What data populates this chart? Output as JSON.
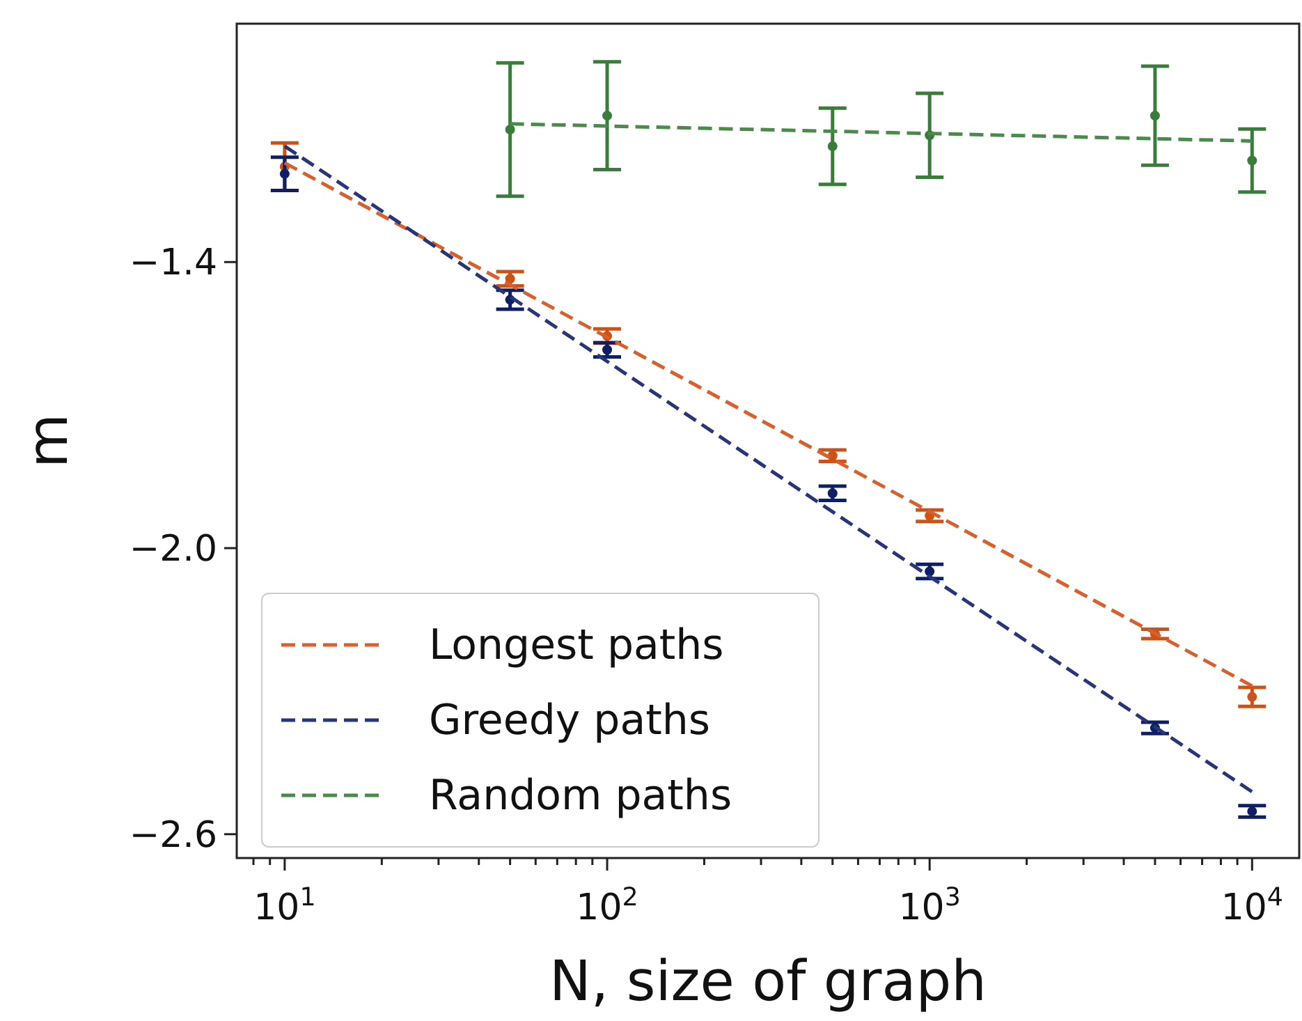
{
  "chart_data": {
    "type": "scatter",
    "xlabel": "N, size of graph",
    "ylabel": "m",
    "log": "x",
    "xlim": [
      7.1,
      14000
    ],
    "ylim": [
      -2.65,
      -0.9
    ],
    "xticks": [
      {
        "value": 10,
        "label": "10$^{1}$"
      },
      {
        "value": 100,
        "label": "10$^{2}$"
      },
      {
        "value": 1000,
        "label": "10$^{3}$"
      },
      {
        "value": 10000,
        "label": "10$^{4}$"
      },
      {
        "value": 8,
        "label": null
      },
      {
        "value": 9,
        "label": null
      },
      {
        "value": 20,
        "label": null
      },
      {
        "value": 30,
        "label": null
      },
      {
        "value": 40,
        "label": null
      },
      {
        "value": 50,
        "label": null
      },
      {
        "value": 60,
        "label": null
      },
      {
        "value": 70,
        "label": null
      },
      {
        "value": 80,
        "label": null
      },
      {
        "value": 90,
        "label": null
      },
      {
        "value": 200,
        "label": null
      },
      {
        "value": 300,
        "label": null
      },
      {
        "value": 400,
        "label": null
      },
      {
        "value": 500,
        "label": null
      },
      {
        "value": 600,
        "label": null
      },
      {
        "value": 700,
        "label": null
      },
      {
        "value": 800,
        "label": null
      },
      {
        "value": 900,
        "label": null
      },
      {
        "value": 2000,
        "label": null
      },
      {
        "value": 3000,
        "label": null
      },
      {
        "value": 4000,
        "label": null
      },
      {
        "value": 5000,
        "label": null
      },
      {
        "value": 6000,
        "label": null
      },
      {
        "value": 7000,
        "label": null
      },
      {
        "value": 8000,
        "label": null
      },
      {
        "value": 9000,
        "label": null
      }
    ],
    "yticks": [
      {
        "value": -1.4,
        "label": "−1.4"
      },
      {
        "value": -2.0,
        "label": "−2.0"
      },
      {
        "value": -2.6,
        "label": "−2.6"
      }
    ],
    "legend": "bottom left",
    "marker": "circle",
    "grid": false,
    "series": [
      {
        "color": "#cc5218",
        "x": [
          10,
          50,
          100,
          500,
          1000,
          5000,
          10000
        ],
        "values": [
          -1.2,
          -1.435,
          -1.555,
          -1.806,
          -1.932,
          -2.18,
          -2.312
        ],
        "errors": [
          0.05,
          0.015,
          0.015,
          0.012,
          0.012,
          0.01,
          0.02
        ]
      },
      {
        "color": "#0f1f66",
        "x": [
          10,
          50,
          100,
          500,
          1000,
          5000,
          10000
        ],
        "values": [
          -1.215,
          -1.479,
          -1.584,
          -1.885,
          -2.049,
          -2.377,
          -2.552
        ],
        "errors": [
          0.035,
          0.02,
          0.015,
          0.015,
          0.015,
          0.012,
          0.012
        ]
      },
      {
        "color": "#3a7d3a",
        "x": [
          50,
          100,
          500,
          1000,
          5000,
          10000
        ],
        "values": [
          -1.122,
          -1.093,
          -1.157,
          -1.134,
          -1.093,
          -1.187
        ],
        "errors": [
          0.14,
          0.113,
          0.08,
          0.088,
          0.104,
          0.066
        ]
      },
      {
        "type": "line",
        "name": "Longest paths",
        "color": "#d9602a",
        "line_style": "dashed",
        "marker": "none",
        "x": [
          10,
          10000
        ],
        "values": [
          -1.192,
          -2.289
        ]
      },
      {
        "type": "line",
        "name": "Greedy paths",
        "color": "#27357a",
        "line_style": "dashed",
        "marker": "none",
        "x": [
          10,
          10000
        ],
        "values": [
          -1.157,
          -2.511
        ]
      },
      {
        "type": "line",
        "name": "Random paths",
        "color": "#4a8a4a",
        "line_style": "dashed",
        "marker": "none",
        "x": [
          50,
          10000
        ],
        "values": [
          -1.11,
          -1.146
        ]
      }
    ]
  }
}
